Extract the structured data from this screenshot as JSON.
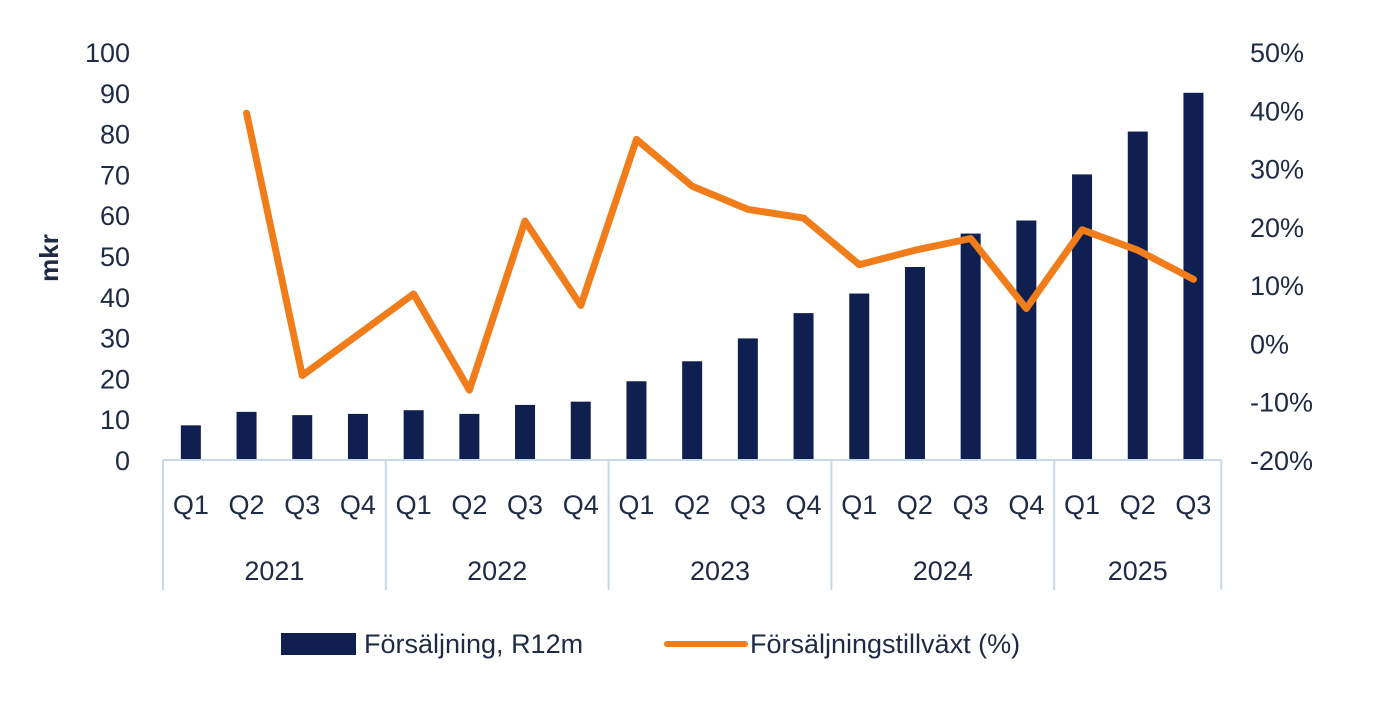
{
  "chart_data": {
    "type": "bar",
    "xlabel": "",
    "ylabel": "mkr",
    "ylim": [
      0,
      100
    ],
    "y2lim": [
      -20,
      50
    ],
    "y_ticks": [
      "0",
      "10",
      "20",
      "30",
      "40",
      "50",
      "60",
      "70",
      "80",
      "90",
      "100"
    ],
    "y2_ticks": [
      "-20%",
      "-10%",
      "0%",
      "10%",
      "20%",
      "30%",
      "40%",
      "50%"
    ],
    "categories": [
      "Q1",
      "Q2",
      "Q3",
      "Q4",
      "Q1",
      "Q2",
      "Q3",
      "Q4",
      "Q1",
      "Q2",
      "Q3",
      "Q4",
      "Q1",
      "Q2",
      "Q3",
      "Q4",
      "Q1",
      "Q2",
      "Q3"
    ],
    "groups": [
      {
        "label": "2021",
        "count": 4
      },
      {
        "label": "2022",
        "count": 4
      },
      {
        "label": "2023",
        "count": 4
      },
      {
        "label": "2024",
        "count": 4
      },
      {
        "label": "2025",
        "count": 3
      }
    ],
    "series": [
      {
        "name": "Försäljning, R12m",
        "type": "bar",
        "axis": "left",
        "color": "#0f2050",
        "values": [
          8.5,
          11.8,
          11.0,
          11.3,
          12.2,
          11.3,
          13.5,
          14.3,
          19.3,
          24.2,
          29.8,
          36.0,
          40.8,
          47.3,
          55.5,
          58.7,
          70.0,
          80.5,
          90.0
        ]
      },
      {
        "name": "Försäljningstillväxt (%)",
        "type": "line",
        "axis": "right",
        "color": "#f07c1a",
        "values": [
          null,
          39.5,
          -5.5,
          1.5,
          8.5,
          -8.0,
          21.0,
          6.5,
          35.0,
          27.0,
          23.0,
          21.5,
          13.5,
          16.0,
          18.0,
          6.0,
          19.5,
          16.0,
          11.0
        ]
      }
    ],
    "legend": {
      "position": "bottom",
      "items": [
        {
          "label": "Försäljning, R12m",
          "swatch": "bar"
        },
        {
          "label": "Försäljningstillväxt (%)",
          "swatch": "line"
        }
      ]
    },
    "colors": {
      "bar": "#0f2050",
      "line": "#f07c1a",
      "grid_lines": "#c9d9ea",
      "text": "#1f2a44"
    }
  }
}
